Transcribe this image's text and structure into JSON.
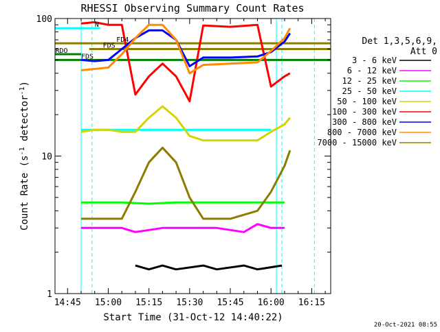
{
  "chart_data": {
    "type": "line",
    "title": "RHESSI Observing Summary Count Rates",
    "xlabel": "Start Time (31-Oct-12 14:40:22)",
    "ylabel": "Count Rate (s",
    "ylabel_sup": "-1",
    "ylabel_tail": " detector",
    "ylabel_tail_sup": "-1",
    "ylabel_close": ")",
    "yscale": "log",
    "xlim": [
      "14:40:22",
      "16:22:00"
    ],
    "ylim": [
      1,
      100
    ],
    "xticks": [
      "14:45",
      "15:00",
      "15:15",
      "15:30",
      "15:45",
      "16:00",
      "16:15"
    ],
    "yticks": [
      "1",
      "10",
      "100"
    ],
    "grid": false,
    "legend_position": "right",
    "legend_header": [
      "Det 1,3,5,6,9,",
      "Att 0"
    ],
    "footer_date": "20-Oct-2021 08:55",
    "series": [
      {
        "name": "3 - 6 keV",
        "color": "#000000",
        "x": [
          "15:10",
          "15:15",
          "15:20",
          "15:25",
          "15:35",
          "15:40",
          "15:50",
          "15:55",
          "16:04"
        ],
        "y": [
          1.6,
          1.5,
          1.6,
          1.5,
          1.6,
          1.5,
          1.6,
          1.5,
          1.6
        ]
      },
      {
        "name": "6 - 12 keV",
        "color": "#ff00ff",
        "x": [
          "14:50",
          "14:55",
          "15:00",
          "15:05",
          "15:10",
          "15:20",
          "15:30",
          "15:40",
          "15:50",
          "15:55",
          "16:00",
          "16:05"
        ],
        "y": [
          3.0,
          3.0,
          3.0,
          3.0,
          2.8,
          3.0,
          3.0,
          3.0,
          2.8,
          3.2,
          3.0,
          3.0
        ]
      },
      {
        "name": "12 - 25 keV",
        "color": "#00ff00",
        "x": [
          "14:50",
          "14:55",
          "15:00",
          "15:05",
          "15:15",
          "15:25",
          "15:35",
          "15:40",
          "15:50",
          "15:55",
          "16:00",
          "16:05"
        ],
        "y": [
          4.6,
          4.6,
          4.6,
          4.6,
          4.5,
          4.6,
          4.6,
          4.6,
          4.6,
          4.6,
          4.6,
          4.6
        ]
      },
      {
        "name": "25 - 50 keV",
        "color": "#00ffff",
        "x": [
          "14:50",
          "14:55",
          "15:00",
          "15:05",
          "15:10",
          "15:20",
          "15:30",
          "15:40",
          "15:50",
          "15:55",
          "16:00"
        ],
        "y": [
          15.5,
          15.5,
          15.5,
          15.5,
          15.5,
          15.5,
          15.5,
          15.5,
          15.5,
          15.5,
          15.5
        ]
      },
      {
        "name": "50 - 100 keV",
        "color": "#d4d400",
        "x": [
          "14:50",
          "14:55",
          "15:00",
          "15:05",
          "15:10",
          "15:15",
          "15:20",
          "15:25",
          "15:30",
          "15:35",
          "15:45",
          "15:55",
          "16:00",
          "16:05",
          "16:07"
        ],
        "y": [
          15.0,
          15.5,
          15.5,
          15.0,
          15.0,
          19.0,
          23.0,
          19.0,
          14.0,
          13.0,
          13.0,
          13.0,
          15.0,
          17.0,
          19.0
        ]
      },
      {
        "name": "100 - 300 keV",
        "color": "#ff0000",
        "x": [
          "14:50",
          "14:55",
          "15:00",
          "15:05",
          "15:10",
          "15:15",
          "15:20",
          "15:25",
          "15:30",
          "15:35",
          "15:45",
          "15:55",
          "16:00",
          "16:05",
          "16:07"
        ],
        "y": [
          92.0,
          94.0,
          90.0,
          90.0,
          28.0,
          38.0,
          47.0,
          38.0,
          25.0,
          89.0,
          87.0,
          90.0,
          32.0,
          38.0,
          40.0
        ]
      },
      {
        "name": "300 - 800 keV",
        "color": "#0000ff",
        "x": [
          "14:50",
          "14:55",
          "15:00",
          "15:05",
          "15:10",
          "15:15",
          "15:20",
          "15:25",
          "15:30",
          "15:35",
          "15:45",
          "15:55",
          "16:00",
          "16:05",
          "16:07"
        ],
        "y": [
          50.0,
          49.0,
          50.0,
          60.0,
          72.0,
          82.0,
          82.0,
          70.0,
          45.0,
          52.0,
          52.0,
          53.0,
          57.0,
          68.0,
          78.0
        ]
      },
      {
        "name": "800 - 7000 keV",
        "color": "#ff8c00",
        "x": [
          "14:50",
          "14:55",
          "15:00",
          "15:05",
          "15:10",
          "15:15",
          "15:20",
          "15:25",
          "15:30",
          "15:35",
          "15:45",
          "15:55",
          "16:00",
          "16:05",
          "16:07"
        ],
        "y": [
          42.0,
          43.0,
          44.0,
          55.0,
          72.0,
          90.0,
          90.0,
          70.0,
          40.0,
          46.0,
          47.0,
          48.0,
          58.0,
          72.0,
          85.0
        ]
      },
      {
        "name": "7000 - 15000 keV",
        "color": "#8b7b00",
        "x": [
          "14:50",
          "14:55",
          "15:00",
          "15:05",
          "15:10",
          "15:15",
          "15:20",
          "15:25",
          "15:30",
          "15:35",
          "15:45",
          "15:55",
          "16:00",
          "16:05",
          "16:07"
        ],
        "y": [
          3.5,
          3.5,
          3.5,
          3.5,
          5.5,
          9.0,
          11.5,
          9.0,
          5.0,
          3.5,
          3.5,
          4.0,
          5.5,
          8.5,
          11.0
        ]
      }
    ],
    "reference_lines": [
      {
        "label": "N",
        "color": "#00ffff",
        "y": 85,
        "x": [
          "14:40:22",
          "14:57"
        ],
        "label_x": "14:55"
      },
      {
        "label": "FD4",
        "color": "#8b7b00",
        "y": 66,
        "x": [
          "14:40:22",
          "16:22"
        ],
        "label_x": "15:03"
      },
      {
        "label": "FDS",
        "color": "#8b7b00",
        "y": 60,
        "x": [
          "14:53",
          "16:22"
        ],
        "label_x": "14:58"
      },
      {
        "label": "RDO",
        "color": "#008000",
        "y": 55,
        "x": [
          "14:40:22",
          "14:50"
        ],
        "label_x": "14:40:30"
      },
      {
        "label": "FDS",
        "color": "#008000",
        "y": 50,
        "x": [
          "14:40:22",
          "16:22"
        ],
        "label_x": "14:50"
      }
    ],
    "vertical_markers": [
      {
        "x": "14:50",
        "color": "#00ffff",
        "style": "solid"
      },
      {
        "x": "14:54",
        "color": "#00ffff",
        "style": "dashed"
      },
      {
        "x": "16:02",
        "color": "#00ffff",
        "style": "solid"
      },
      {
        "x": "16:04",
        "color": "#00ffff",
        "style": "dashed"
      },
      {
        "x": "16:16",
        "color": "#00ffff",
        "style": "dashed"
      }
    ]
  }
}
